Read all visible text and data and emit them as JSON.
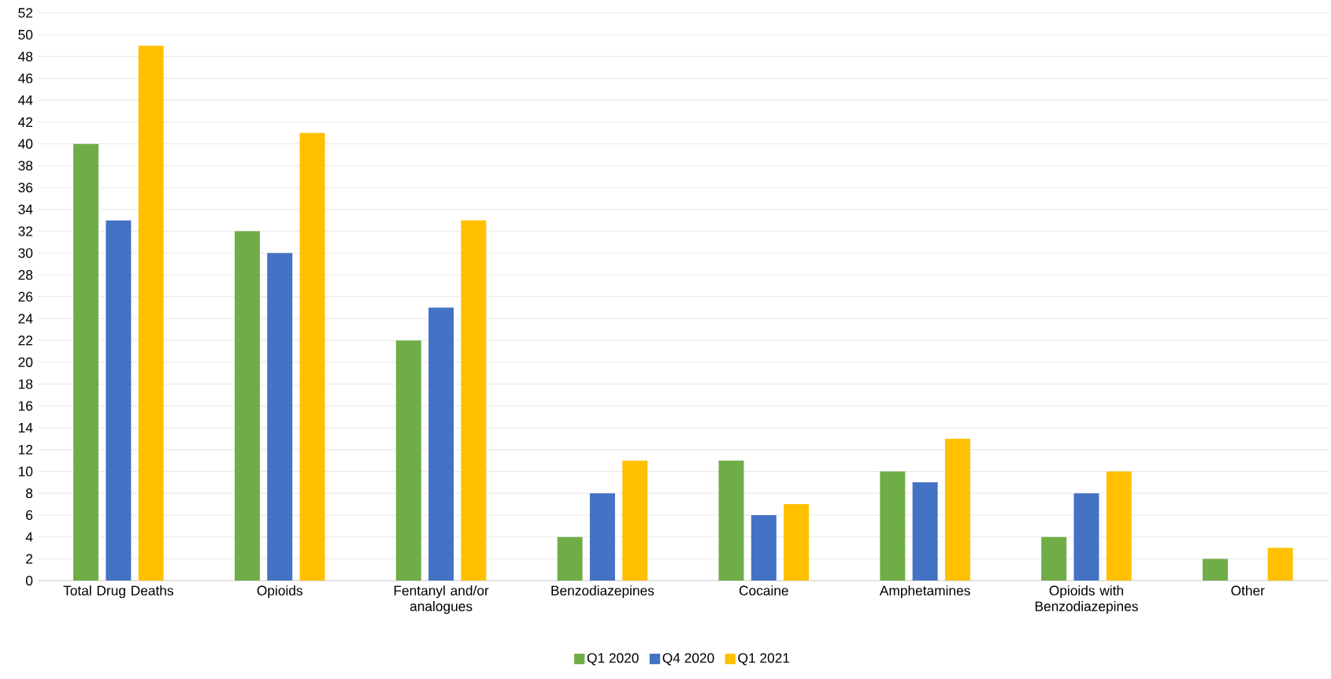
{
  "chart_data": {
    "type": "bar",
    "categories": [
      "Total Drug Deaths",
      "Opioids",
      "Fentanyl and/or analogues",
      "Benzodiazepines",
      "Cocaine",
      "Amphetamines",
      "Opioids with Benzodiazepines",
      "Other"
    ],
    "series": [
      {
        "name": "Q1 2020",
        "color": "#70ad47",
        "values": [
          40,
          32,
          22,
          4,
          11,
          10,
          4,
          2
        ]
      },
      {
        "name": "Q4 2020",
        "color": "#4472c4",
        "values": [
          33,
          30,
          25,
          8,
          6,
          9,
          8,
          0
        ]
      },
      {
        "name": "Q1 2021",
        "color": "#ffc000",
        "values": [
          49,
          41,
          33,
          11,
          7,
          13,
          10,
          3
        ]
      }
    ],
    "ylim": [
      0,
      52
    ],
    "yticks": [
      0,
      2,
      4,
      6,
      8,
      10,
      12,
      14,
      16,
      18,
      20,
      22,
      24,
      26,
      28,
      30,
      32,
      34,
      36,
      38,
      40,
      42,
      44,
      46,
      48,
      50,
      52
    ],
    "grid": "y",
    "legend": "bottom"
  }
}
